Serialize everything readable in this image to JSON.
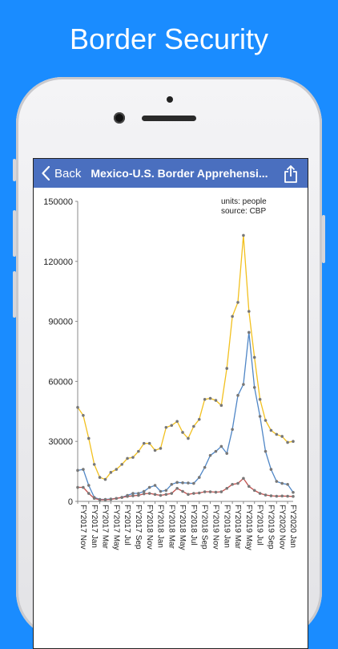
{
  "headline": "Border Security",
  "nav": {
    "back_label": "Back",
    "title": "Mexico-U.S. Border Apprehensi..."
  },
  "chart_note": {
    "units": "units: people",
    "source": "source: CBP"
  },
  "colors": {
    "background": "#1a8cff",
    "navbar": "#4a6fbf",
    "total": "#f2c01e",
    "family": "#4f86c6",
    "minors": "#c0504d"
  },
  "chart_data": {
    "type": "line",
    "ylim": [
      0,
      150000
    ],
    "y_ticks": [
      "0",
      "30000",
      "60000",
      "90000",
      "120000",
      "150000"
    ],
    "x": [
      "FY2017 Nov",
      "FY2017 Dec",
      "FY2017 Jan",
      "FY2017 Feb",
      "FY2017 Mar",
      "FY2017 Apr",
      "FY2017 May",
      "FY2017 Jun",
      "FY2017 Jul",
      "FY2017 Aug",
      "FY2017 Sep",
      "FY2018 Oct",
      "FY2018 Nov",
      "FY2018 Dec",
      "FY2018 Jan",
      "FY2018 Feb",
      "FY2018 Mar",
      "FY2018 Apr",
      "FY2018 May",
      "FY2018 Jun",
      "FY2018 Jul",
      "FY2018 Aug",
      "FY2018 Sep",
      "FY2019 Oct",
      "FY2019 Nov",
      "FY2019 Dec",
      "FY2019 Jan",
      "FY2019 Feb",
      "FY2019 Mar",
      "FY2019 Apr",
      "FY2019 May",
      "FY2019 Jun",
      "FY2019 Jul",
      "FY2019 Aug",
      "FY2019 Sep",
      "FY2020 Oct",
      "FY2020 Nov",
      "FY2020 Dec",
      "FY2020 Jan",
      "FY2020 Feb"
    ],
    "x_tick_labels": [
      "FY2017 Nov",
      "FY2017 Jan",
      "FY2017 Mar",
      "FY2017 May",
      "FY2017 Jul",
      "FY2017 Sep",
      "FY2018 Nov",
      "FY2018 Jan",
      "FY2018 Mar",
      "FY2018 May",
      "FY2018 Jul",
      "FY2018 Sep",
      "FY2019 Nov",
      "FY2019 Jan",
      "FY2019 Mar",
      "FY2019 May",
      "FY2019 Jul",
      "FY2019 Sep",
      "FY2020 Nov",
      "FY2020 Jan"
    ],
    "series": [
      {
        "color": "#f2c01e",
        "values": [
          47000,
          43000,
          31500,
          18500,
          12000,
          11000,
          14500,
          16000,
          18500,
          21500,
          22000,
          25000,
          29000,
          29000,
          25500,
          26500,
          37000,
          38000,
          40000,
          34500,
          31500,
          37500,
          41000,
          51000,
          51500,
          50500,
          48000,
          66500,
          92500,
          99500,
          133000,
          95000,
          72000,
          51000,
          40500,
          35500,
          33500,
          32500,
          29500,
          30000
        ]
      },
      {
        "color": "#4f86c6",
        "values": [
          15500,
          16000,
          8000,
          2000,
          1000,
          1000,
          1200,
          1500,
          2000,
          3000,
          4000,
          4000,
          5000,
          7000,
          8000,
          5000,
          5500,
          8500,
          9500,
          9300,
          9200,
          9000,
          12000,
          17000,
          23000,
          25000,
          27500,
          24000,
          36000,
          53000,
          58500,
          84500,
          57000,
          42500,
          25000,
          16000,
          10000,
          9000,
          8500,
          4500
        ]
      },
      {
        "color": "#c0504d",
        "values": [
          7000,
          7000,
          4000,
          1500,
          800,
          800,
          1000,
          1500,
          2000,
          2500,
          2800,
          3000,
          3800,
          4000,
          3500,
          3000,
          3500,
          4000,
          6500,
          5000,
          3500,
          4000,
          4200,
          4800,
          4800,
          4600,
          4800,
          6500,
          8500,
          9000,
          11500,
          7500,
          5500,
          4000,
          3200,
          2800,
          2600,
          2700,
          2600,
          2500
        ]
      }
    ]
  }
}
